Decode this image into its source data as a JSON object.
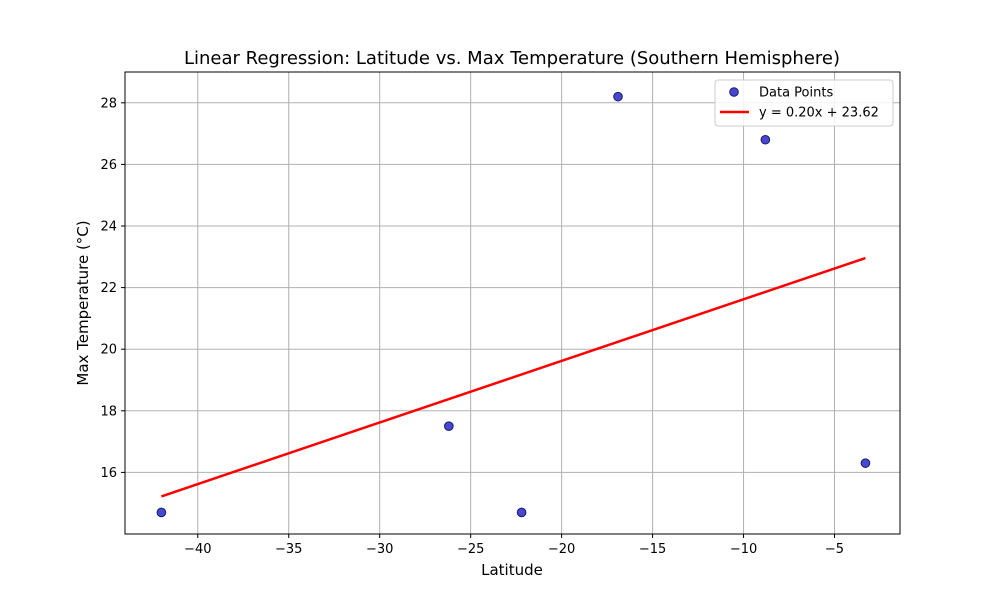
{
  "chart_data": {
    "type": "scatter",
    "title": "Linear Regression: Latitude vs. Max Temperature (Southern Hemisphere)",
    "xlabel": "Latitude",
    "ylabel": "Max Temperature (°C)",
    "xlim": [
      -44.0,
      -1.4
    ],
    "ylim": [
      14.0,
      29.0
    ],
    "xticks": [
      -40,
      -35,
      -30,
      -25,
      -20,
      -15,
      -10,
      -5
    ],
    "yticks": [
      16,
      18,
      20,
      22,
      24,
      26,
      28
    ],
    "grid": true,
    "legend_position": "top-right",
    "series": [
      {
        "name": "Data Points",
        "kind": "scatter",
        "color": "#3333cc",
        "edge_color": "#1a1a66",
        "points": [
          {
            "x": -42.0,
            "y": 14.7
          },
          {
            "x": -26.2,
            "y": 17.5
          },
          {
            "x": -22.2,
            "y": 14.7
          },
          {
            "x": -16.9,
            "y": 28.2
          },
          {
            "x": -8.8,
            "y": 26.8
          },
          {
            "x": -3.3,
            "y": 16.3
          }
        ]
      },
      {
        "name": "y = 0.20x + 23.62",
        "kind": "line",
        "color": "#ff0000",
        "slope": 0.2,
        "intercept": 23.62,
        "x_range": [
          -42.0,
          -3.3
        ]
      }
    ]
  }
}
